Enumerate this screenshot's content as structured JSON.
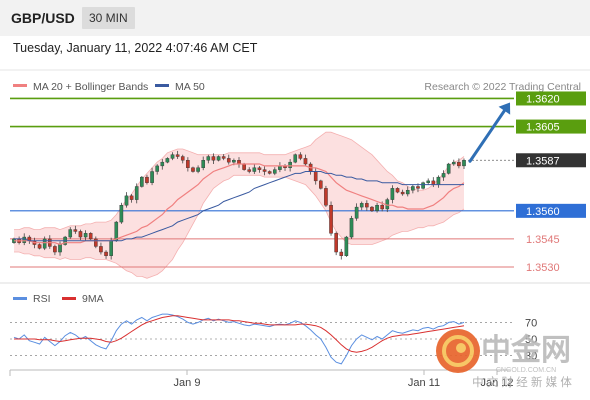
{
  "header": {
    "pair": "GBP/USD",
    "timeframe": "30 MIN"
  },
  "datetime": "Tuesday, January 11, 2022 4:07:46 AM CET",
  "legend": {
    "ma20": "MA 20 + Bollinger Bands",
    "ma50": "MA 50",
    "credit": "Research © 2022 Trading Central",
    "rsi": "RSI",
    "ma9": "9MA"
  },
  "colors": {
    "resistance": "#5a9e0f",
    "pivot": "#2f6fd6",
    "support": "#e07878",
    "last": "#333333",
    "up_candle": "#2e8b57",
    "down_candle": "#c0392b",
    "ma20_band": "#f08080",
    "ma50": "#3a5aa0",
    "rsi": "#5b8fe0",
    "rsi_ma": "#d93030",
    "arrow": "#2f6fb5"
  },
  "watermark": {
    "cn": "中金网",
    "url": "CNGOLD.COM.CN",
    "sub": "中 文 财 经 新 媒 体"
  },
  "chart_data": {
    "type": "candlestick",
    "price_range": [
      1.3522,
      1.3632
    ],
    "levels": [
      {
        "value": 1.362,
        "label": "1.3620",
        "kind": "resistance"
      },
      {
        "value": 1.3605,
        "label": "1.3605",
        "kind": "resistance"
      },
      {
        "value": 1.3587,
        "label": "1.3587",
        "kind": "last"
      },
      {
        "value": 1.356,
        "label": "1.3560",
        "kind": "pivot"
      },
      {
        "value": 1.3545,
        "label": "1.3545",
        "kind": "support"
      },
      {
        "value": 1.353,
        "label": "1.3530",
        "kind": "support"
      }
    ],
    "x_ticks": [
      "Jan 9",
      "Jan 11",
      "Jan 12"
    ],
    "closes": [
      1.3545,
      1.3543,
      1.3546,
      1.3544,
      1.3542,
      1.354,
      1.3545,
      1.3541,
      1.3538,
      1.3542,
      1.3546,
      1.355,
      1.3549,
      1.3546,
      1.3548,
      1.3545,
      1.3541,
      1.3538,
      1.3536,
      1.3544,
      1.3554,
      1.3563,
      1.3568,
      1.3566,
      1.3573,
      1.3578,
      1.3575,
      1.3581,
      1.3584,
      1.3586,
      1.3588,
      1.359,
      1.3589,
      1.3587,
      1.3583,
      1.3581,
      1.3583,
      1.3587,
      1.3589,
      1.3587,
      1.3589,
      1.3588,
      1.3586,
      1.3587,
      1.3585,
      1.3582,
      1.3581,
      1.3583,
      1.3582,
      1.3581,
      1.358,
      1.3582,
      1.3584,
      1.3583,
      1.3586,
      1.359,
      1.3588,
      1.3585,
      1.3581,
      1.3576,
      1.3572,
      1.3563,
      1.3548,
      1.3538,
      1.3536,
      1.3546,
      1.3556,
      1.3562,
      1.3564,
      1.3562,
      1.356,
      1.3563,
      1.3561,
      1.3566,
      1.3572,
      1.357,
      1.3569,
      1.3571,
      1.3573,
      1.3572,
      1.3575,
      1.3576,
      1.3574,
      1.3578,
      1.358,
      1.3585,
      1.3586,
      1.3584,
      1.3587
    ],
    "ma20": [
      1.3544,
      1.3544,
      1.3544,
      1.3544,
      1.3543,
      1.3543,
      1.3543,
      1.3543,
      1.3543,
      1.3542,
      1.3543,
      1.3543,
      1.3543,
      1.3543,
      1.3544,
      1.3544,
      1.3544,
      1.3544,
      1.3544,
      1.3544,
      1.3545,
      1.3546,
      1.3547,
      1.3548,
      1.3549,
      1.3551,
      1.3552,
      1.3554,
      1.3556,
      1.3558,
      1.3561,
      1.3563,
      1.3566,
      1.3568,
      1.357,
      1.3572,
      1.3574,
      1.3577,
      1.3579,
      1.3581,
      1.3582,
      1.3583,
      1.3584,
      1.3585,
      1.3585,
      1.3585,
      1.3585,
      1.3585,
      1.3585,
      1.3584,
      1.3584,
      1.3584,
      1.3584,
      1.3584,
      1.3584,
      1.3584,
      1.3584,
      1.3584,
      1.3583,
      1.3583,
      1.3582,
      1.3581,
      1.3578,
      1.3575,
      1.3573,
      1.3571,
      1.357,
      1.3569,
      1.3568,
      1.3567,
      1.3566,
      1.3565,
      1.3564,
      1.3563,
      1.3563,
      1.3562,
      1.3562,
      1.3561,
      1.3561,
      1.3561,
      1.3561,
      1.3562,
      1.3563,
      1.3565,
      1.3567,
      1.357,
      1.3572,
      1.3573,
      1.3575
    ],
    "ma50": [
      1.3545,
      1.3545,
      1.3545,
      1.3544,
      1.3544,
      1.3544,
      1.3544,
      1.3544,
      1.3544,
      1.3544,
      1.3544,
      1.3544,
      1.3544,
      1.3544,
      1.3544,
      1.3544,
      1.3544,
      1.3544,
      1.3544,
      1.3544,
      1.3544,
      1.3544,
      1.3545,
      1.3545,
      1.3546,
      1.3546,
      1.3547,
      1.3548,
      1.3549,
      1.355,
      1.3551,
      1.3552,
      1.3554,
      1.3555,
      1.3556,
      1.3557,
      1.3558,
      1.356,
      1.3561,
      1.3562,
      1.3563,
      1.3565,
      1.3566,
      1.3567,
      1.3568,
      1.3569,
      1.357,
      1.3572,
      1.3573,
      1.3574,
      1.3575,
      1.3576,
      1.3577,
      1.3578,
      1.3579,
      1.358,
      1.358,
      1.3581,
      1.3581,
      1.3581,
      1.3581,
      1.358,
      1.358,
      1.3579,
      1.3579,
      1.3578,
      1.3578,
      1.3577,
      1.3577,
      1.3576,
      1.3576,
      1.3576,
      1.3575,
      1.3575,
      1.3575,
      1.3575,
      1.3574,
      1.3574,
      1.3574,
      1.3574,
      1.3574,
      1.3574,
      1.3574,
      1.3574,
      1.3574,
      1.3574,
      1.3574,
      1.3574,
      1.3574
    ],
    "band_width": [
      0.0006,
      0.0006,
      0.0007,
      0.0007,
      0.0007,
      0.0007,
      0.0008,
      0.0008,
      0.0008,
      0.0008,
      0.0008,
      0.0009,
      0.0009,
      0.0009,
      0.0009,
      0.0009,
      0.001,
      0.001,
      0.001,
      0.0011,
      0.0013,
      0.0016,
      0.0019,
      0.0021,
      0.0024,
      0.0026,
      0.0028,
      0.0029,
      0.003,
      0.003,
      0.003,
      0.0029,
      0.0027,
      0.0025,
      0.0022,
      0.0019,
      0.0016,
      0.0013,
      0.0011,
      0.0009,
      0.0008,
      0.0007,
      0.0007,
      0.0006,
      0.0006,
      0.0006,
      0.0006,
      0.0006,
      0.0006,
      0.0006,
      0.0006,
      0.0006,
      0.0006,
      0.0006,
      0.0007,
      0.0008,
      0.0009,
      0.001,
      0.0012,
      0.0015,
      0.0018,
      0.0021,
      0.0024,
      0.0026,
      0.0027,
      0.0028,
      0.0028,
      0.0027,
      0.0026,
      0.0025,
      0.0024,
      0.0022,
      0.002,
      0.0018,
      0.0016,
      0.0014,
      0.0013,
      0.0012,
      0.0011,
      0.001,
      0.001,
      0.001,
      0.0011,
      0.0012,
      0.0013,
      0.0014,
      0.0014,
      0.0014,
      0.0014
    ],
    "rsi": {
      "levels": [
        70,
        50,
        30
      ],
      "labels": [
        "70",
        "50",
        "30"
      ],
      "range": [
        15,
        85
      ],
      "values": [
        52,
        50,
        55,
        48,
        46,
        44,
        52,
        47,
        42,
        47,
        54,
        58,
        55,
        50,
        53,
        48,
        43,
        40,
        38,
        48,
        60,
        68,
        72,
        68,
        73,
        76,
        72,
        76,
        78,
        80,
        80,
        79,
        77,
        74,
        70,
        68,
        70,
        73,
        75,
        72,
        74,
        72,
        70,
        71,
        69,
        67,
        66,
        68,
        67,
        66,
        65,
        67,
        68,
        67,
        69,
        72,
        70,
        66,
        61,
        55,
        50,
        40,
        28,
        22,
        20,
        30,
        42,
        50,
        55,
        52,
        49,
        53,
        50,
        55,
        60,
        58,
        57,
        59,
        61,
        60,
        63,
        64,
        62,
        65,
        66,
        70,
        71,
        68,
        70
      ],
      "ma": [
        50,
        50,
        50,
        50,
        50,
        49,
        49,
        49,
        48,
        47,
        48,
        49,
        50,
        51,
        51,
        51,
        50,
        49,
        47,
        46,
        48,
        51,
        55,
        59,
        63,
        67,
        70,
        72,
        74,
        76,
        77,
        78,
        78,
        77,
        76,
        75,
        74,
        73,
        73,
        73,
        73,
        73,
        73,
        72,
        72,
        71,
        70,
        69,
        69,
        68,
        67,
        67,
        67,
        67,
        67,
        67,
        68,
        68,
        67,
        66,
        64,
        60,
        55,
        49,
        43,
        38,
        35,
        34,
        35,
        37,
        40,
        44,
        48,
        51,
        53,
        54,
        55,
        55,
        56,
        57,
        58,
        59,
        60,
        61,
        62,
        63,
        64,
        65,
        66
      ]
    }
  }
}
